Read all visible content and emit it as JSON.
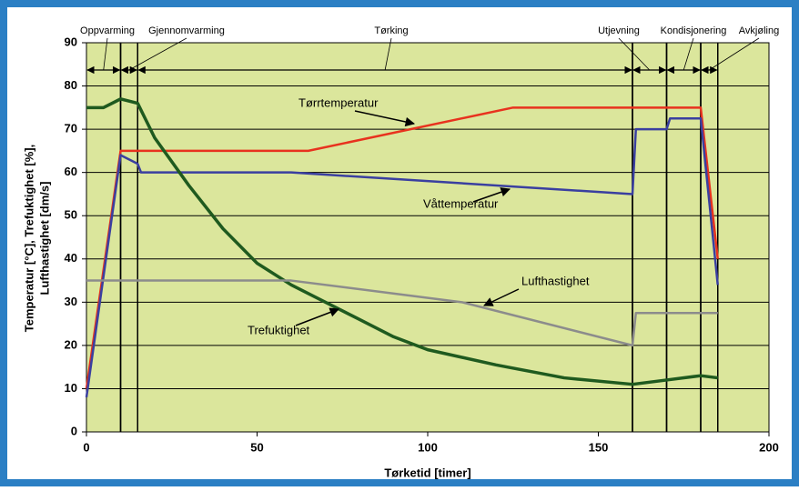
{
  "chart_data": {
    "type": "line",
    "xlabel": "Tørketid [timer]",
    "ylabel": [
      "Temperatur [°C], Trefuktighet [%],",
      "Lufthastighet [dm/s]"
    ],
    "xlim": [
      0,
      200
    ],
    "xticks": [
      0,
      50,
      100,
      150,
      200
    ],
    "ylim": [
      0,
      90
    ],
    "yticks": [
      0,
      10,
      20,
      30,
      40,
      50,
      60,
      70,
      80,
      90
    ],
    "grid": true,
    "phases": [
      {
        "label": "Oppvarming",
        "start": 0,
        "end": 10
      },
      {
        "label": "Gjennomvarming",
        "start": 10,
        "end": 15
      },
      {
        "label": "Tørking",
        "start": 15,
        "end": 160
      },
      {
        "label": "Utjevning",
        "start": 160,
        "end": 170
      },
      {
        "label": "Kondisjonering",
        "start": 170,
        "end": 180
      },
      {
        "label": "Avkjøling",
        "start": 180,
        "end": 185
      }
    ],
    "series": [
      {
        "name": "Tørrtemperatur",
        "color": "#e8321e",
        "x": [
          0,
          10,
          65,
          125,
          180,
          185
        ],
        "values": [
          10,
          65,
          65,
          75,
          75,
          40
        ]
      },
      {
        "name": "Våttemperatur",
        "color": "#3a3fa0",
        "x": [
          0,
          10,
          15,
          16,
          60,
          160,
          161,
          170,
          171,
          180,
          185
        ],
        "values": [
          8,
          64,
          62,
          60,
          60,
          55,
          70,
          70,
          72.5,
          72.5,
          34
        ]
      },
      {
        "name": "Trefuktighet",
        "color": "#1f5a1f",
        "x": [
          0,
          5,
          10,
          15,
          20,
          30,
          40,
          50,
          60,
          70,
          80,
          90,
          100,
          120,
          140,
          160,
          170,
          180,
          185
        ],
        "values": [
          75,
          75,
          77,
          76,
          68,
          57,
          47,
          39,
          34,
          30,
          26,
          22,
          19,
          15.5,
          12.5,
          11,
          12,
          13,
          12.5
        ]
      },
      {
        "name": "Lufthastighet",
        "color": "#8c8c8c",
        "x": [
          0,
          60,
          110,
          160,
          161,
          185
        ],
        "values": [
          35,
          35,
          30,
          20,
          27.5,
          27.5
        ]
      }
    ]
  }
}
